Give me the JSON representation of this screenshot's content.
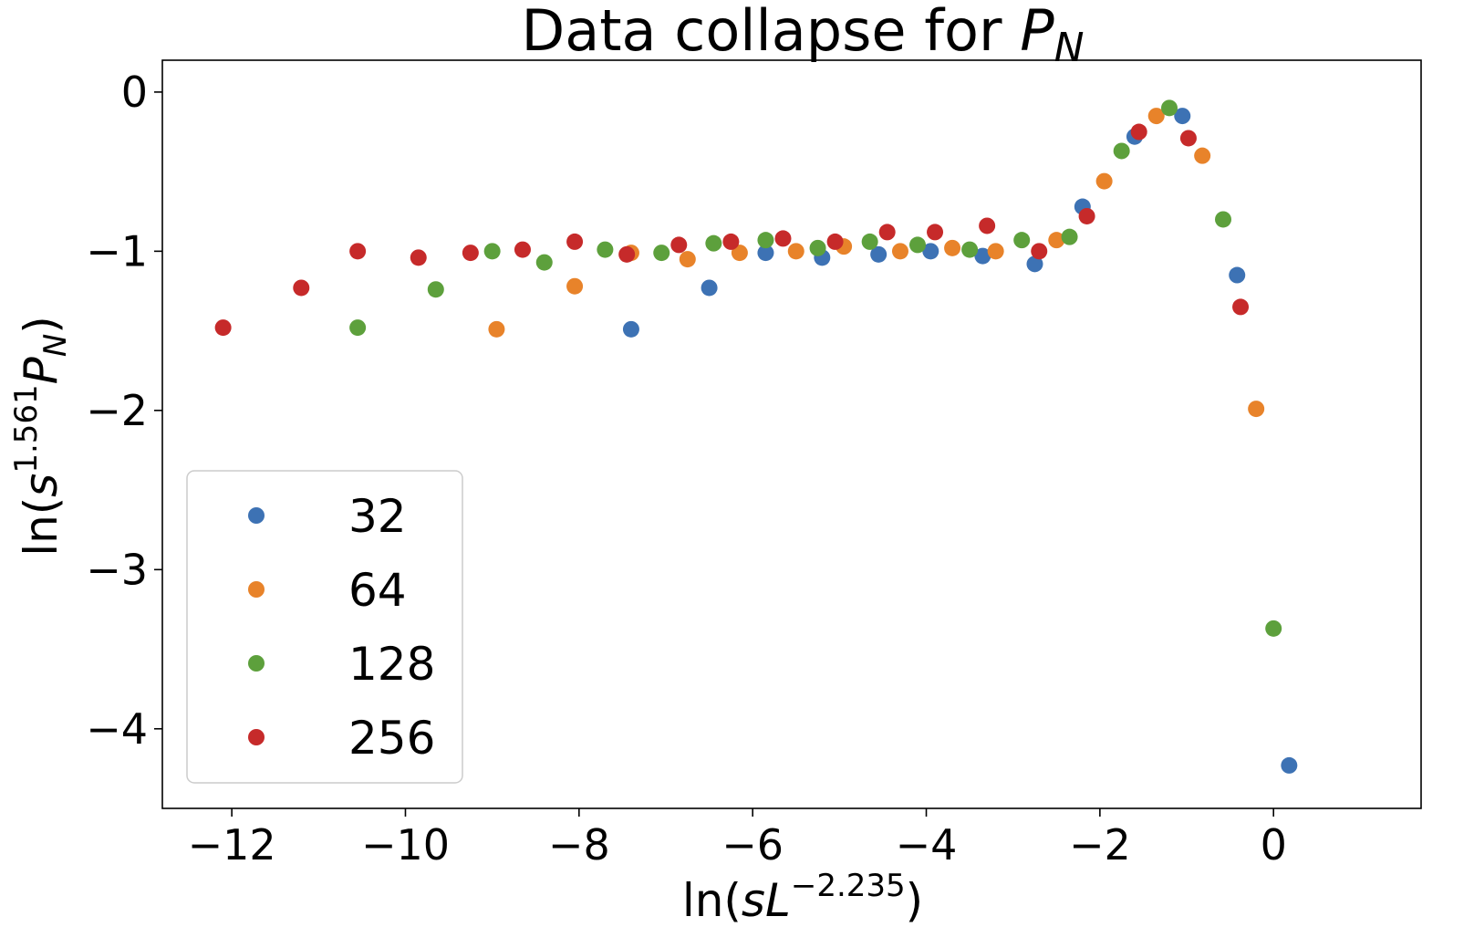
{
  "chart_data": {
    "type": "scatter",
    "title": {
      "prefix": "Data collapse for ",
      "symbol": "P",
      "subscript": "N"
    },
    "xlabel": {
      "prefix": "ln(",
      "var1": "s",
      "var2": "L",
      "exponent": "−2.235",
      "suffix": ")"
    },
    "ylabel": {
      "prefix": "ln(",
      "var1": "s",
      "exponent": "1.561",
      "var2": "P",
      "subscript": "N",
      "suffix": ")"
    },
    "xlim": [
      -12.8,
      1.7
    ],
    "ylim": [
      -4.5,
      0.2
    ],
    "x_ticks": [
      -12,
      -10,
      -8,
      -6,
      -4,
      -2,
      0
    ],
    "x_tick_labels": [
      "−12",
      "−10",
      "−8",
      "−6",
      "−4",
      "−2",
      "0"
    ],
    "y_ticks": [
      0,
      -1,
      -2,
      -3,
      -4
    ],
    "y_tick_labels": [
      "0",
      "−1",
      "−2",
      "−3",
      "−4"
    ],
    "grid": false,
    "legend_position": "lower-left",
    "series": [
      {
        "name": "32",
        "color": "#3d72b4",
        "points": [
          [
            -7.4,
            -1.49
          ],
          [
            -6.5,
            -1.23
          ],
          [
            -5.85,
            -1.01
          ],
          [
            -5.2,
            -1.04
          ],
          [
            -4.55,
            -1.02
          ],
          [
            -3.95,
            -1.0
          ],
          [
            -3.35,
            -1.03
          ],
          [
            -2.75,
            -1.08
          ],
          [
            -2.2,
            -0.72
          ],
          [
            -1.6,
            -0.28
          ],
          [
            -1.05,
            -0.15
          ],
          [
            -0.42,
            -1.15
          ],
          [
            0.18,
            -4.23
          ]
        ]
      },
      {
        "name": "64",
        "color": "#e8832a",
        "points": [
          [
            -8.95,
            -1.49
          ],
          [
            -8.05,
            -1.22
          ],
          [
            -7.4,
            -1.01
          ],
          [
            -6.75,
            -1.05
          ],
          [
            -6.15,
            -1.01
          ],
          [
            -5.5,
            -1.0
          ],
          [
            -4.95,
            -0.97
          ],
          [
            -4.3,
            -1.0
          ],
          [
            -3.7,
            -0.98
          ],
          [
            -3.2,
            -1.0
          ],
          [
            -2.5,
            -0.93
          ],
          [
            -1.95,
            -0.56
          ],
          [
            -1.35,
            -0.15
          ],
          [
            -0.82,
            -0.4
          ],
          [
            -0.2,
            -1.99
          ]
        ]
      },
      {
        "name": "128",
        "color": "#5da03c",
        "points": [
          [
            -10.55,
            -1.48
          ],
          [
            -9.65,
            -1.24
          ],
          [
            -9.0,
            -1.0
          ],
          [
            -8.4,
            -1.07
          ],
          [
            -7.7,
            -0.99
          ],
          [
            -7.05,
            -1.01
          ],
          [
            -6.45,
            -0.95
          ],
          [
            -5.85,
            -0.93
          ],
          [
            -5.25,
            -0.98
          ],
          [
            -4.65,
            -0.94
          ],
          [
            -4.1,
            -0.96
          ],
          [
            -3.5,
            -0.99
          ],
          [
            -2.9,
            -0.93
          ],
          [
            -2.35,
            -0.91
          ],
          [
            -1.75,
            -0.37
          ],
          [
            -1.2,
            -0.1
          ],
          [
            -0.58,
            -0.8
          ],
          [
            0.0,
            -3.37
          ]
        ]
      },
      {
        "name": "256",
        "color": "#c62a2a",
        "points": [
          [
            -12.1,
            -1.48
          ],
          [
            -11.2,
            -1.23
          ],
          [
            -10.55,
            -1.0
          ],
          [
            -9.85,
            -1.04
          ],
          [
            -9.25,
            -1.01
          ],
          [
            -8.65,
            -0.99
          ],
          [
            -8.05,
            -0.94
          ],
          [
            -7.45,
            -1.02
          ],
          [
            -6.85,
            -0.96
          ],
          [
            -6.25,
            -0.94
          ],
          [
            -5.65,
            -0.92
          ],
          [
            -5.05,
            -0.94
          ],
          [
            -4.45,
            -0.88
          ],
          [
            -3.9,
            -0.88
          ],
          [
            -3.3,
            -0.84
          ],
          [
            -2.7,
            -1.0
          ],
          [
            -2.15,
            -0.78
          ],
          [
            -1.55,
            -0.25
          ],
          [
            -0.98,
            -0.29
          ],
          [
            -0.38,
            -1.35
          ]
        ]
      }
    ]
  }
}
